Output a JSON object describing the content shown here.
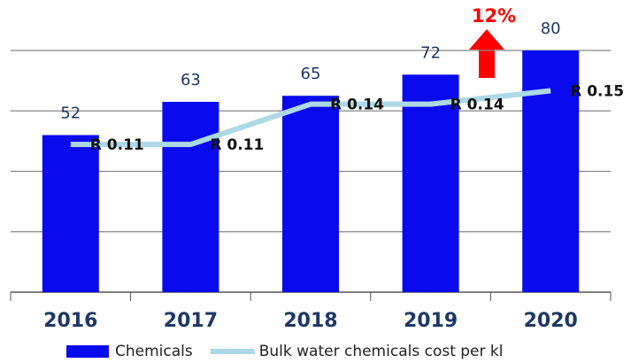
{
  "chart_data": {
    "type": "bar",
    "categories": [
      "2016",
      "2017",
      "2018",
      "2019",
      "2020"
    ],
    "series": [
      {
        "name": "Chemicals",
        "type": "bar",
        "color": "#0a0aee",
        "values": [
          52,
          63,
          65,
          72,
          80
        ]
      },
      {
        "name": "Bulk water chemicals cost per kl",
        "type": "line",
        "axis": "y2",
        "color": "#add8e6",
        "values": [
          0.11,
          0.11,
          0.14,
          0.14,
          0.15
        ],
        "value_labels": [
          "R 0.11",
          "R 0.11",
          "R 0.14",
          "R 0.14",
          "R 0.15"
        ]
      }
    ],
    "ylim": [
      0,
      80
    ],
    "yticks": [
      0,
      20,
      40,
      60,
      80
    ],
    "y2lim": [
      0,
      0.18
    ],
    "grid": true,
    "annotation": "12%"
  }
}
